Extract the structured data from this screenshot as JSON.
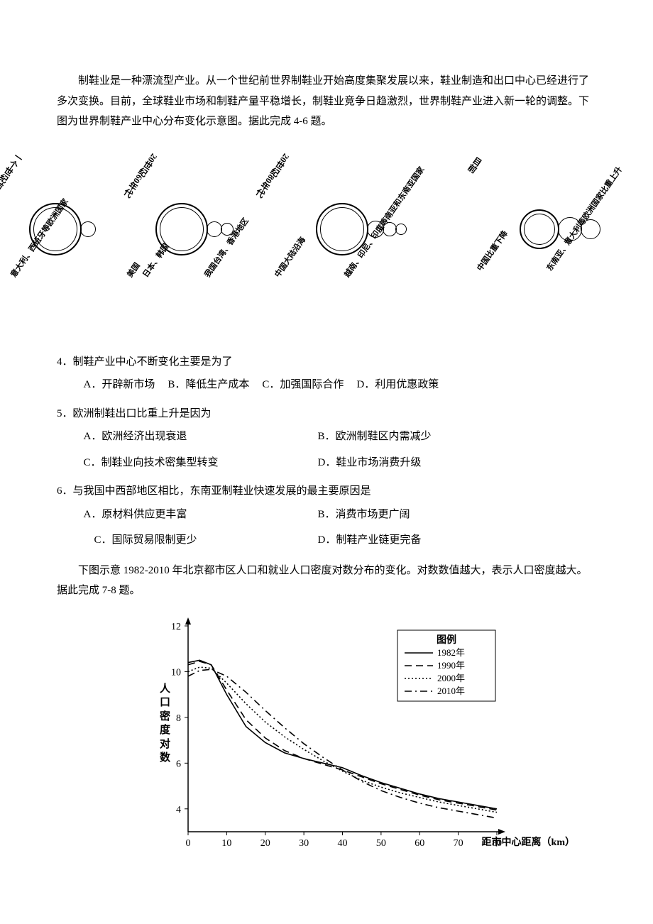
{
  "intro1": "制鞋业是一种漂流型产业。从一个世纪前世界制鞋业开始高度集聚发展以来，鞋业制造和出口中心已经进行了多次变换。目前，全球鞋业市场和制鞋产量平稳增长，制鞋业竞争日趋激烈，世界制鞋产业进入新一轮的调整。下图为世界制鞋产业中心分布变化示意图。据此完成 4-6 题。",
  "diagram1": {
    "stages": [
      {
        "top": "一个世纪前",
        "big": 62,
        "smalls": [
          22
        ],
        "bottom": [
          "意大利、西班牙等欧洲国家",
          "美国"
        ]
      },
      {
        "top": "20世纪60年代",
        "big": 62,
        "smalls": [
          22,
          18
        ],
        "bottom": [
          "日本、韩国",
          "我国台湾、香港地区"
        ]
      },
      {
        "top": "20世纪80年代",
        "big": 62,
        "smalls": [
          24,
          20,
          16
        ],
        "bottom": [
          "中国大陆沿海",
          "越南、印尼、印度等南亚和东南亚国家"
        ]
      },
      {
        "top": "目前",
        "big": 44,
        "smalls": [
          34,
          28
        ],
        "bottom": [
          "中国比重下降",
          "东南亚、意大利等欧洲国家比重上升"
        ]
      }
    ]
  },
  "q4": {
    "text": "4．制鞋产业中心不断变化主要是为了",
    "A": "A．开辟新市场",
    "B": "B．降低生产成本",
    "C": "C．加强国际合作",
    "D": "D．利用优惠政策"
  },
  "q5": {
    "text": "5．欧洲制鞋出口比重上升是因为",
    "A": "A．欧洲经济出现衰退",
    "B": "B．欧洲制鞋区内需减少",
    "C": "C．制鞋业向技术密集型转变",
    "D": "D．鞋业市场消费升级"
  },
  "q6": {
    "text": "6．与我国中西部地区相比，东南亚制鞋业快速发展的最主要原因是",
    "A": "A．原材料供应更丰富",
    "B": "B．消费市场更广阔",
    "C": "C．国际贸易限制更少",
    "D": "D．制鞋产业链更完备"
  },
  "intro2": "下图示意 1982-2010 年北京都市区人口和就业人口密度对数分布的变化。对数数值越大，表示人口密度越大。据此完成 7-8 题。",
  "chart2": {
    "ylabel": "人口密度对数",
    "xlabel": "距市中心距离（km）",
    "ylim": [
      3,
      12
    ],
    "yticks": [
      4,
      6,
      8,
      10,
      12
    ],
    "xlim": [
      0,
      80
    ],
    "xticks": [
      0,
      10,
      20,
      30,
      40,
      50,
      60,
      70,
      80
    ],
    "legend_title": "图例",
    "legend_items": [
      "1982年",
      "1990年",
      "2000年",
      "2010年"
    ],
    "line_colors": [
      "#000000",
      "#000000",
      "#000000",
      "#000000"
    ],
    "line_styles": [
      "solid",
      "dash-long",
      "dot",
      "dash-dot"
    ],
    "background_color": "#ffffff",
    "axis_color": "#000000",
    "series": {
      "1982": [
        [
          0,
          10.4
        ],
        [
          3,
          10.5
        ],
        [
          6,
          10.3
        ],
        [
          10,
          9.0
        ],
        [
          15,
          7.6
        ],
        [
          20,
          6.9
        ],
        [
          25,
          6.45
        ],
        [
          30,
          6.2
        ],
        [
          35,
          6.0
        ],
        [
          40,
          5.8
        ],
        [
          45,
          5.45
        ],
        [
          50,
          5.15
        ],
        [
          55,
          4.9
        ],
        [
          60,
          4.65
        ],
        [
          65,
          4.45
        ],
        [
          70,
          4.3
        ],
        [
          75,
          4.15
        ],
        [
          80,
          4.0
        ]
      ],
      "1990": [
        [
          0,
          10.3
        ],
        [
          3,
          10.45
        ],
        [
          6,
          10.3
        ],
        [
          10,
          9.2
        ],
        [
          15,
          7.9
        ],
        [
          20,
          7.1
        ],
        [
          25,
          6.55
        ],
        [
          30,
          6.2
        ],
        [
          35,
          5.95
        ],
        [
          40,
          5.7
        ],
        [
          45,
          5.4
        ],
        [
          50,
          5.1
        ],
        [
          55,
          4.85
        ],
        [
          60,
          4.6
        ],
        [
          65,
          4.4
        ],
        [
          70,
          4.25
        ],
        [
          75,
          4.1
        ],
        [
          80,
          3.95
        ]
      ],
      "2000": [
        [
          0,
          10.0
        ],
        [
          3,
          10.2
        ],
        [
          6,
          10.15
        ],
        [
          10,
          9.5
        ],
        [
          15,
          8.6
        ],
        [
          20,
          7.8
        ],
        [
          25,
          7.15
        ],
        [
          30,
          6.6
        ],
        [
          35,
          6.1
        ],
        [
          40,
          5.65
        ],
        [
          45,
          5.25
        ],
        [
          50,
          4.95
        ],
        [
          55,
          4.7
        ],
        [
          60,
          4.5
        ],
        [
          65,
          4.3
        ],
        [
          70,
          4.15
        ],
        [
          75,
          4.0
        ],
        [
          80,
          3.85
        ]
      ],
      "2010": [
        [
          0,
          9.8
        ],
        [
          3,
          10.05
        ],
        [
          6,
          10.1
        ],
        [
          10,
          9.8
        ],
        [
          15,
          9.1
        ],
        [
          20,
          8.3
        ],
        [
          25,
          7.55
        ],
        [
          30,
          6.85
        ],
        [
          35,
          6.25
        ],
        [
          40,
          5.7
        ],
        [
          45,
          5.2
        ],
        [
          50,
          4.8
        ],
        [
          55,
          4.5
        ],
        [
          60,
          4.25
        ],
        [
          65,
          4.05
        ],
        [
          70,
          3.9
        ],
        [
          75,
          3.75
        ],
        [
          80,
          3.6
        ]
      ]
    }
  }
}
